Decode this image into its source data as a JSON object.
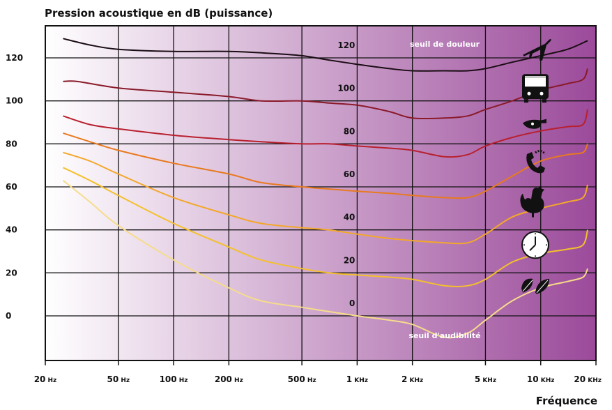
{
  "chart_data": {
    "type": "line",
    "title": "Pression acoustique en dB (puissance)",
    "xlabel": "Fréquence",
    "ylabel": "",
    "x_scale": "log",
    "xlim": [
      20,
      20000
    ],
    "ylim": [
      -20,
      135
    ],
    "grid": true,
    "background_gradient": [
      "#ffffff",
      "#9b4a9a"
    ],
    "x_ticks": [
      {
        "value": 20,
        "num": "20",
        "unit": "Hz"
      },
      {
        "value": 50,
        "num": "50",
        "unit": "Hz"
      },
      {
        "value": 100,
        "num": "100",
        "unit": "Hz"
      },
      {
        "value": 200,
        "num": "200",
        "unit": "Hz"
      },
      {
        "value": 500,
        "num": "500",
        "unit": "Hz"
      },
      {
        "value": 1000,
        "num": "1",
        "unit": "KHz"
      },
      {
        "value": 2000,
        "num": "2",
        "unit": "KHz"
      },
      {
        "value": 5000,
        "num": "5",
        "unit": "KHz"
      },
      {
        "value": 10000,
        "num": "10",
        "unit": "KHz"
      },
      {
        "value": 20000,
        "num": "20",
        "unit": "KHz"
      }
    ],
    "y_ticks": [
      120,
      100,
      80,
      60,
      40,
      20,
      0
    ],
    "series": [
      {
        "label": "120",
        "color": "#1a0d14",
        "annotation": "seuil de douleur",
        "points": [
          [
            25,
            129
          ],
          [
            35,
            126
          ],
          [
            50,
            124
          ],
          [
            100,
            123
          ],
          [
            200,
            123
          ],
          [
            350,
            122
          ],
          [
            500,
            121
          ],
          [
            700,
            119
          ],
          [
            1000,
            117
          ],
          [
            1500,
            115
          ],
          [
            2000,
            114
          ],
          [
            3000,
            114
          ],
          [
            4000,
            114
          ],
          [
            5000,
            115
          ],
          [
            7000,
            118
          ],
          [
            10000,
            121
          ],
          [
            14000,
            124
          ],
          [
            18000,
            128
          ]
        ]
      },
      {
        "label": "100",
        "color": "#8a1a2a",
        "points": [
          [
            25,
            109
          ],
          [
            30,
            109
          ],
          [
            50,
            106
          ],
          [
            100,
            104
          ],
          [
            200,
            102
          ],
          [
            300,
            100
          ],
          [
            500,
            100
          ],
          [
            700,
            99
          ],
          [
            1000,
            98
          ],
          [
            1500,
            95
          ],
          [
            2000,
            92
          ],
          [
            3000,
            92
          ],
          [
            4000,
            93
          ],
          [
            5000,
            96
          ],
          [
            7000,
            100
          ],
          [
            10000,
            105
          ],
          [
            14000,
            108
          ],
          [
            17000,
            110
          ],
          [
            18000,
            115
          ]
        ]
      },
      {
        "label": "80",
        "color": "#b8202e",
        "points": [
          [
            25,
            93
          ],
          [
            35,
            89
          ],
          [
            50,
            87
          ],
          [
            100,
            84
          ],
          [
            200,
            82
          ],
          [
            300,
            81
          ],
          [
            500,
            80
          ],
          [
            700,
            80
          ],
          [
            1000,
            79
          ],
          [
            1500,
            78
          ],
          [
            2000,
            77
          ],
          [
            3000,
            74
          ],
          [
            4000,
            75
          ],
          [
            5000,
            79
          ],
          [
            7000,
            83
          ],
          [
            10000,
            86
          ],
          [
            14000,
            88
          ],
          [
            17000,
            89
          ],
          [
            18000,
            96
          ]
        ]
      },
      {
        "label": "60",
        "color": "#e87a1e",
        "points": [
          [
            25,
            85
          ],
          [
            35,
            81
          ],
          [
            50,
            77
          ],
          [
            100,
            71
          ],
          [
            200,
            66
          ],
          [
            300,
            62
          ],
          [
            500,
            60
          ],
          [
            700,
            59
          ],
          [
            1000,
            58
          ],
          [
            1500,
            57
          ],
          [
            2000,
            56
          ],
          [
            3000,
            55
          ],
          [
            4000,
            55
          ],
          [
            5000,
            58
          ],
          [
            7000,
            65
          ],
          [
            10000,
            72
          ],
          [
            14000,
            75
          ],
          [
            17000,
            76
          ],
          [
            18000,
            80
          ]
        ]
      },
      {
        "label": "40",
        "color": "#f3a72a",
        "points": [
          [
            25,
            76
          ],
          [
            35,
            72
          ],
          [
            50,
            66
          ],
          [
            100,
            55
          ],
          [
            200,
            47
          ],
          [
            300,
            43
          ],
          [
            500,
            41
          ],
          [
            700,
            40
          ],
          [
            1000,
            38
          ],
          [
            1500,
            36
          ],
          [
            2000,
            35
          ],
          [
            3000,
            34
          ],
          [
            4000,
            34
          ],
          [
            5000,
            38
          ],
          [
            7000,
            46
          ],
          [
            10000,
            50
          ],
          [
            14000,
            53
          ],
          [
            17000,
            55
          ],
          [
            18000,
            61
          ]
        ]
      },
      {
        "label": "20",
        "color": "#f4c02c",
        "points": [
          [
            25,
            69
          ],
          [
            35,
            63
          ],
          [
            50,
            56
          ],
          [
            100,
            43
          ],
          [
            200,
            32
          ],
          [
            300,
            26
          ],
          [
            500,
            22
          ],
          [
            700,
            20
          ],
          [
            1000,
            19
          ],
          [
            1500,
            18
          ],
          [
            2000,
            17
          ],
          [
            3000,
            14
          ],
          [
            4000,
            14
          ],
          [
            5000,
            17
          ],
          [
            7000,
            25
          ],
          [
            10000,
            29
          ],
          [
            14000,
            31
          ],
          [
            17000,
            33
          ],
          [
            18000,
            40
          ]
        ]
      },
      {
        "label": "0",
        "color": "#f6dc8a",
        "annotation": "seuil d'audibilité",
        "points": [
          [
            25,
            63
          ],
          [
            35,
            53
          ],
          [
            50,
            42
          ],
          [
            100,
            26
          ],
          [
            200,
            13
          ],
          [
            300,
            7
          ],
          [
            500,
            4
          ],
          [
            700,
            2
          ],
          [
            1000,
            0
          ],
          [
            1500,
            -2
          ],
          [
            2000,
            -4
          ],
          [
            3000,
            -10
          ],
          [
            4000,
            -8
          ],
          [
            5000,
            -2
          ],
          [
            7000,
            7
          ],
          [
            10000,
            13
          ],
          [
            14000,
            16
          ],
          [
            17000,
            18
          ],
          [
            18000,
            22
          ]
        ]
      }
    ],
    "icons": [
      {
        "name": "airplane-icon",
        "level": 124
      },
      {
        "name": "bus-icon",
        "level": 106
      },
      {
        "name": "whistle-icon",
        "level": 89
      },
      {
        "name": "telephone-icon",
        "level": 72
      },
      {
        "name": "rooster-icon",
        "level": 53
      },
      {
        "name": "clock-icon",
        "level": 33
      },
      {
        "name": "leaves-icon",
        "level": 14
      }
    ]
  }
}
